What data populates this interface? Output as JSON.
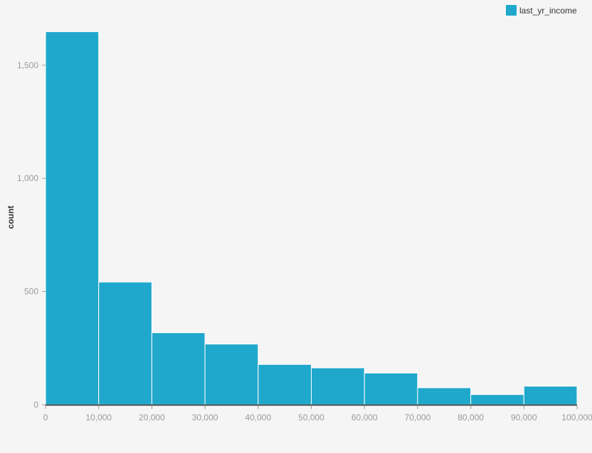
{
  "chart_data": {
    "type": "bar",
    "subtype": "histogram",
    "bins": [
      {
        "x0": 0,
        "x1": 10000,
        "count": 1648
      },
      {
        "x0": 10000,
        "x1": 20000,
        "count": 542
      },
      {
        "x0": 20000,
        "x1": 30000,
        "count": 318
      },
      {
        "x0": 30000,
        "x1": 40000,
        "count": 268
      },
      {
        "x0": 40000,
        "x1": 50000,
        "count": 178
      },
      {
        "x0": 50000,
        "x1": 60000,
        "count": 163
      },
      {
        "x0": 60000,
        "x1": 70000,
        "count": 140
      },
      {
        "x0": 70000,
        "x1": 80000,
        "count": 75
      },
      {
        "x0": 80000,
        "x1": 90000,
        "count": 45
      },
      {
        "x0": 90000,
        "x1": 100000,
        "count": 82
      }
    ],
    "series": [
      {
        "name": "last_yr_income",
        "color": "#1fa8cb"
      }
    ],
    "xlim": [
      0,
      100000
    ],
    "ylim": [
      0,
      1650
    ],
    "x_ticks": [
      {
        "value": 0,
        "label": "0"
      },
      {
        "value": 10000,
        "label": "10,000"
      },
      {
        "value": 20000,
        "label": "20,000"
      },
      {
        "value": 30000,
        "label": "30,000"
      },
      {
        "value": 40000,
        "label": "40,000"
      },
      {
        "value": 50000,
        "label": "50,000"
      },
      {
        "value": 60000,
        "label": "60,000"
      },
      {
        "value": 70000,
        "label": "70,000"
      },
      {
        "value": 80000,
        "label": "80,000"
      },
      {
        "value": 90000,
        "label": "90,000"
      },
      {
        "value": 100000,
        "label": "100,000"
      }
    ],
    "y_ticks": [
      {
        "value": 0,
        "label": "0"
      },
      {
        "value": 500,
        "label": "500"
      },
      {
        "value": 1000,
        "label": "1,000"
      },
      {
        "value": 1500,
        "label": "1,500"
      }
    ],
    "title": "",
    "xlabel": "",
    "ylabel": "count",
    "grid": false,
    "legend_position": "top-right",
    "colors": {
      "background": "#f5f5f5",
      "bar_stroke": "#ffffff",
      "axis": "#222222",
      "tick": "#9a9a9a"
    }
  }
}
